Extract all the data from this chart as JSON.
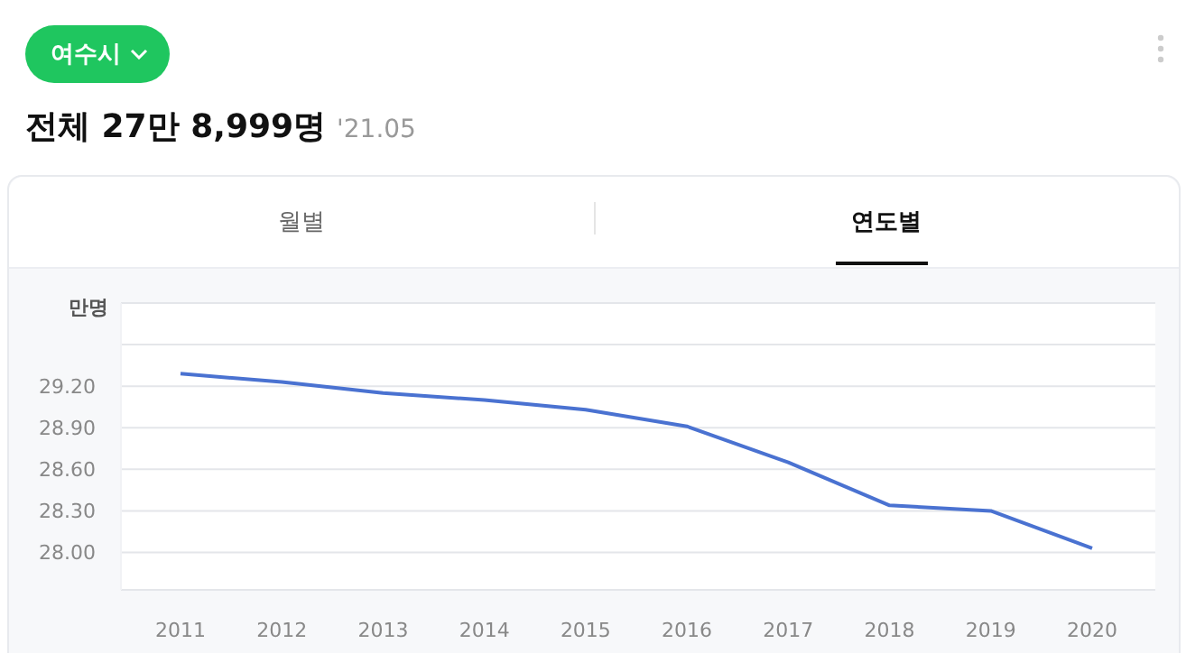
{
  "chart_data": {
    "type": "line",
    "title": "전체 27만 8,999명",
    "subtitle": "'21.05",
    "ylabel": "만명",
    "annotations": [
      "여수시",
      "월별",
      "연도별"
    ],
    "categories": [
      "2011",
      "2012",
      "2013",
      "2014",
      "2015",
      "2016",
      "2017",
      "2018",
      "2019",
      "2020"
    ],
    "series": [
      {
        "color": "#4a72d1",
        "values": [
          29.29,
          29.23,
          29.15,
          29.1,
          29.03,
          28.91,
          28.65,
          28.34,
          28.3,
          28.03
        ]
      }
    ],
    "ylim": [
      27.73,
      29.8
    ],
    "yticks": [
      {
        "value": 28,
        "label": "28.00"
      },
      {
        "value": 28.3,
        "label": "28.30"
      },
      {
        "value": 28.6,
        "label": "28.60"
      },
      {
        "value": 28.9,
        "label": "28.90"
      },
      {
        "value": 29.2,
        "label": "29.20"
      },
      {
        "value": 29.5,
        "label": null
      }
    ],
    "grid": "y",
    "marker": "none",
    "line_style": "solid",
    "legend": false
  }
}
